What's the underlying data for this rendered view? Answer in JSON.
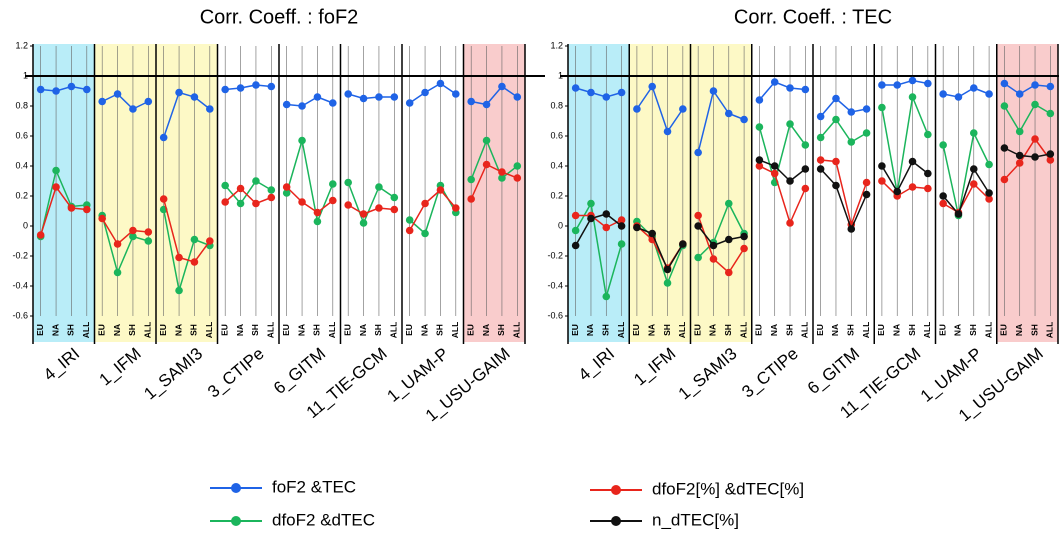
{
  "chart_data": [
    {
      "type": "line",
      "title": "Corr. Coeff. : foF2",
      "categories": [
        "EU",
        "NA",
        "SH",
        "ALL"
      ],
      "groups": [
        {
          "name": "4_IRI",
          "background": "#b9edf8"
        },
        {
          "name": "1_IFM",
          "background": "#fdf9c6"
        },
        {
          "name": "1_SAMI3",
          "label_color": "#e8251c",
          "background": "#fdf9c6"
        },
        {
          "name": "3_CTIPe",
          "label_color": "#e8251c"
        },
        {
          "name": "6_GITM"
        },
        {
          "name": "11_TIE-GCM"
        },
        {
          "name": "1_UAM-P",
          "label_color": "#e8251c"
        },
        {
          "name": "1_USU-GAIM",
          "background": "#f9cccc"
        }
      ],
      "series": [
        {
          "color": "#1f63e6",
          "values": [
            [
              0.91,
              0.9,
              0.93,
              0.91
            ],
            [
              0.83,
              0.88,
              0.78,
              0.83
            ],
            [
              0.59,
              0.89,
              0.86,
              0.78
            ],
            [
              0.91,
              0.92,
              0.94,
              0.93
            ],
            [
              0.81,
              0.8,
              0.86,
              0.82
            ],
            [
              0.88,
              0.85,
              0.86,
              0.86
            ],
            [
              0.82,
              0.89,
              0.95,
              0.88
            ],
            [
              0.83,
              0.81,
              0.93,
              0.86
            ]
          ]
        },
        {
          "color": "#1bb55c",
          "values": [
            [
              -0.07,
              0.37,
              0.13,
              0.14
            ],
            [
              0.07,
              -0.31,
              -0.07,
              -0.1
            ],
            [
              0.11,
              -0.43,
              -0.09,
              -0.13
            ],
            [
              0.27,
              0.15,
              0.3,
              0.24
            ],
            [
              0.22,
              0.57,
              0.03,
              0.28
            ],
            [
              0.29,
              0.02,
              0.26,
              0.19
            ],
            [
              0.04,
              -0.05,
              0.27,
              0.09
            ],
            [
              0.31,
              0.57,
              0.32,
              0.4
            ]
          ]
        },
        {
          "color": "#e8251c",
          "values": [
            [
              -0.06,
              0.26,
              0.12,
              0.11
            ],
            [
              0.05,
              -0.12,
              -0.03,
              -0.04
            ],
            [
              0.18,
              -0.21,
              -0.24,
              -0.1
            ],
            [
              0.16,
              0.25,
              0.15,
              0.19
            ],
            [
              0.26,
              0.16,
              0.09,
              0.17
            ],
            [
              0.14,
              0.08,
              0.12,
              0.11
            ],
            [
              -0.03,
              0.15,
              0.24,
              0.12
            ],
            [
              0.18,
              0.41,
              0.36,
              0.32
            ]
          ]
        }
      ],
      "ylim": [
        -0.6,
        1.2
      ],
      "yticks": [
        1.2,
        1,
        0.8,
        0.6,
        0.4,
        0.2,
        0,
        -0.2,
        -0.4,
        -0.6
      ],
      "reference_line": 1
    },
    {
      "type": "line",
      "title": "Corr. Coeff. : TEC",
      "categories": [
        "EU",
        "NA",
        "SH",
        "ALL"
      ],
      "groups": [
        {
          "name": "4_IRI",
          "background": "#b9edf8"
        },
        {
          "name": "1_IFM",
          "background": "#fdf9c6"
        },
        {
          "name": "1_SAMI3",
          "label_color": "#e8251c",
          "background": "#fdf9c6"
        },
        {
          "name": "3_CTIPe",
          "label_color": "#e8251c"
        },
        {
          "name": "6_GITM"
        },
        {
          "name": "11_TIE-GCM"
        },
        {
          "name": "1_UAM-P",
          "label_color": "#e8251c"
        },
        {
          "name": "1_USU-GAIM",
          "background": "#f9cccc"
        }
      ],
      "series": [
        {
          "name": "foF2 &TEC",
          "color": "#1f63e6",
          "values": [
            [
              0.92,
              0.89,
              0.86,
              0.89
            ],
            [
              0.78,
              0.93,
              0.63,
              0.78
            ],
            [
              0.49,
              0.9,
              0.75,
              0.71
            ],
            [
              0.84,
              0.96,
              0.92,
              0.91
            ],
            [
              0.73,
              0.85,
              0.76,
              0.78
            ],
            [
              0.94,
              0.94,
              0.97,
              0.95
            ],
            [
              0.88,
              0.86,
              0.92,
              0.88
            ],
            [
              0.95,
              0.88,
              0.94,
              0.93
            ]
          ]
        },
        {
          "name": "dfoF2 &dTEC",
          "color": "#1bb55c",
          "values": [
            [
              -0.03,
              0.15,
              -0.47,
              -0.12
            ],
            [
              0.03,
              -0.07,
              -0.38,
              -0.13
            ],
            [
              -0.21,
              -0.11,
              0.15,
              -0.05
            ],
            [
              0.66,
              0.29,
              0.68,
              0.54
            ],
            [
              0.59,
              0.71,
              0.56,
              0.62
            ],
            [
              0.79,
              0.22,
              0.86,
              0.61
            ],
            [
              0.54,
              0.07,
              0.62,
              0.41
            ],
            [
              0.8,
              0.63,
              0.81,
              0.75
            ]
          ]
        },
        {
          "name": "dfoF2[%] &dTEC[%]",
          "color": "#e8251c",
          "values": [
            [
              0.07,
              0.07,
              -0.01,
              0.04
            ],
            [
              0.0,
              -0.09,
              -0.28,
              -0.12
            ],
            [
              0.07,
              -0.22,
              -0.31,
              -0.15
            ],
            [
              0.4,
              0.35,
              0.02,
              0.25
            ],
            [
              0.44,
              0.43,
              0.01,
              0.29
            ],
            [
              0.3,
              0.2,
              0.26,
              0.25
            ],
            [
              0.15,
              0.09,
              0.28,
              0.18
            ],
            [
              0.31,
              0.42,
              0.58,
              0.44
            ]
          ]
        },
        {
          "name": "n_dTEC[%]",
          "color": "#111111",
          "values": [
            [
              -0.13,
              0.05,
              0.08,
              0.0
            ],
            [
              -0.01,
              -0.05,
              -0.29,
              -0.12
            ],
            [
              0.0,
              -0.13,
              -0.09,
              -0.07
            ],
            [
              0.44,
              0.4,
              0.3,
              0.38
            ],
            [
              0.38,
              0.27,
              -0.02,
              0.21
            ],
            [
              0.4,
              0.23,
              0.43,
              0.35
            ],
            [
              0.2,
              0.08,
              0.38,
              0.22
            ],
            [
              0.52,
              0.47,
              0.46,
              0.48
            ]
          ]
        }
      ],
      "ylim": [
        -0.6,
        1.2
      ],
      "yticks": [
        1.2,
        1,
        0.8,
        0.6,
        0.4,
        0.2,
        0,
        -0.2,
        -0.4,
        -0.6
      ],
      "reference_line": 1
    }
  ]
}
